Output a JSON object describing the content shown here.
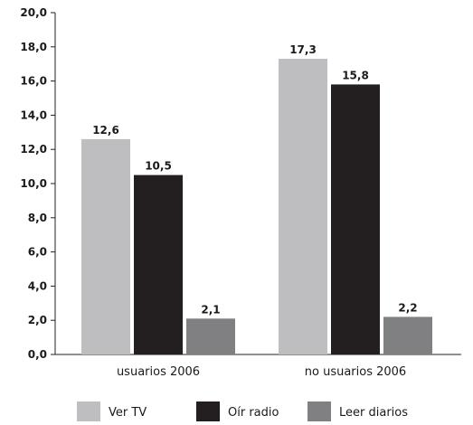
{
  "chart_data": {
    "type": "bar",
    "categories": [
      "usuarios 2006",
      "no usuarios 2006"
    ],
    "series": [
      {
        "name": "Ver TV",
        "values": [
          12.6,
          17.3
        ],
        "labels": [
          "12,6",
          "17,3"
        ],
        "color": "#bebec0"
      },
      {
        "name": "Oír radio",
        "values": [
          10.5,
          15.8
        ],
        "labels": [
          "10,5",
          "15,8"
        ],
        "color": "#231f20"
      },
      {
        "name": "Leer diarios",
        "values": [
          2.1,
          2.2
        ],
        "labels": [
          "2,1",
          "2,2"
        ],
        "color": "#808082"
      }
    ],
    "ylim": [
      0,
      20
    ],
    "yticks": [
      0,
      2,
      4,
      6,
      8,
      10,
      12,
      14,
      16,
      18,
      20
    ],
    "ytick_labels": [
      "0,0",
      "2,0",
      "4,0",
      "6,0",
      "8,0",
      "10,0",
      "12,0",
      "14,0",
      "16,0",
      "18,0",
      "20,0"
    ],
    "title": "",
    "xlabel": "",
    "ylabel": "",
    "grid": false,
    "legend_position": "bottom"
  }
}
